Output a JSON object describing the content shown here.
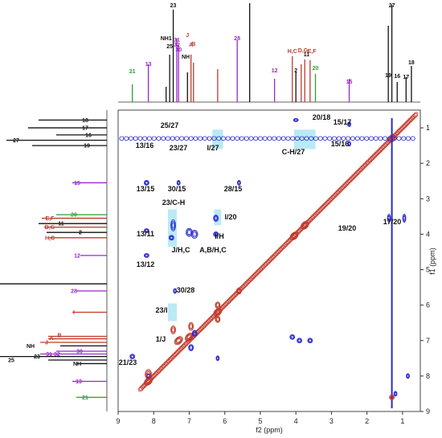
{
  "chart_data": {
    "type": "heatmap",
    "title": "",
    "xlabel": "f2 (ppm)",
    "ylabel": "f1 (ppm)",
    "xlim": [
      9,
      0.5
    ],
    "ylim": [
      0.5,
      9
    ],
    "x_ticks": [
      "9",
      "8",
      "7",
      "6",
      "5",
      "4",
      "3",
      "2",
      "1"
    ],
    "y_ticks": [
      "1",
      "2",
      "3",
      "4",
      "5",
      "6",
      "7",
      "8",
      "9"
    ],
    "grid": false,
    "series": [
      {
        "name": "",
        "color": "#c0392b"
      },
      {
        "name": "",
        "color": "#2a2ad4"
      }
    ],
    "highlight_color": "#7fd9ec",
    "cross_peaks": [
      {
        "label": "20/18",
        "x": 4.0,
        "y": 0.78
      },
      {
        "label": "15/17",
        "x": 2.5,
        "y": 0.9
      },
      {
        "label": "25/27",
        "x": 7.5,
        "y": 1.3
      },
      {
        "label": "13/16",
        "x": 8.2,
        "y": 1.3
      },
      {
        "label": "23/27",
        "x": 7.4,
        "y": 1.3
      },
      {
        "label": "I/27",
        "x": 6.2,
        "y": 1.3
      },
      {
        "label": "C-H/27",
        "x": 3.8,
        "y": 1.3
      },
      {
        "label": "15/16",
        "x": 2.5,
        "y": 1.3
      },
      {
        "label": "13/15",
        "x": 8.2,
        "y": 2.55
      },
      {
        "label": "30/15",
        "x": 7.3,
        "y": 2.55
      },
      {
        "label": "28/15",
        "x": 5.6,
        "y": 2.55
      },
      {
        "label": "23/C-H",
        "x": 7.4,
        "y": 3.65
      },
      {
        "label": "I/20",
        "x": 6.2,
        "y": 3.55
      },
      {
        "label": "13/11",
        "x": 8.2,
        "y": 3.9
      },
      {
        "label": "I/H",
        "x": 6.2,
        "y": 4.0
      },
      {
        "label": "J/H,C",
        "x": 7.3,
        "y": 4.0
      },
      {
        "label": "A,B/H,C",
        "x": 6.9,
        "y": 4.0
      },
      {
        "label": "19/20",
        "x": 1.3,
        "y": 3.55
      },
      {
        "label": "17/20",
        "x": 0.9,
        "y": 3.55
      },
      {
        "label": "13/12",
        "x": 8.2,
        "y": 4.6
      },
      {
        "label": "30/28",
        "x": 7.3,
        "y": 5.6
      },
      {
        "label": "23/I",
        "x": 7.5,
        "y": 6.2
      },
      {
        "label": "1/J",
        "x": 7.3,
        "y": 7.0
      },
      {
        "label": "21/23",
        "x": 8.6,
        "y": 7.5
      }
    ],
    "top_projection_labels": [
      {
        "label": "23",
        "x": 7.45,
        "color": "#111111"
      },
      {
        "label": "27",
        "x": 1.3,
        "color": "#111111"
      },
      {
        "label": "31",
        "x": 7.35,
        "color": "#9b27c9"
      },
      {
        "label": "32",
        "x": 7.35,
        "color": "#9b27c9"
      },
      {
        "label": "30",
        "x": 7.3,
        "color": "#9b27c9"
      },
      {
        "label": "J",
        "x": 7.05,
        "color": "#c0392b"
      },
      {
        "label": "A",
        "x": 6.95,
        "color": "#c0392b"
      },
      {
        "label": "B",
        "x": 6.88,
        "color": "#c0392b"
      },
      {
        "label": "25",
        "x": 7.55,
        "color": "#111111"
      },
      {
        "label": "28",
        "x": 5.65,
        "color": "#9b27c9"
      },
      {
        "label": "13",
        "x": 8.15,
        "color": "#9b27c9"
      },
      {
        "label": "NH1",
        "x": 7.65,
        "color": "#111111"
      },
      {
        "label": "NH",
        "x": 7.1,
        "color": "#111111"
      },
      {
        "label": "I",
        "x": 6.2,
        "color": "#c0392b"
      },
      {
        "label": "H,C",
        "x": 4.1,
        "color": "#c0392b"
      },
      {
        "label": "D,G",
        "x": 3.8,
        "color": "#c0392b"
      },
      {
        "label": "E,F",
        "x": 3.55,
        "color": "#c0392b"
      },
      {
        "label": "11",
        "x": 3.7,
        "color": "#111111"
      },
      {
        "label": "2",
        "x": 4.0,
        "color": "#111111"
      },
      {
        "label": "20",
        "x": 3.45,
        "color": "#2e9e2e"
      },
      {
        "label": "12",
        "x": 4.6,
        "color": "#9b27c9"
      },
      {
        "label": "21",
        "x": 8.6,
        "color": "#2e9e2e"
      },
      {
        "label": "15",
        "x": 2.5,
        "color": "#9b27c9"
      },
      {
        "label": "19",
        "x": 1.4,
        "color": "#111111"
      },
      {
        "label": "16",
        "x": 1.15,
        "color": "#111111"
      },
      {
        "label": "17",
        "x": 0.9,
        "color": "#111111"
      },
      {
        "label": "18",
        "x": 0.75,
        "color": "#111111"
      }
    ],
    "left_projection_labels": [
      {
        "label": "18",
        "y": 0.78,
        "color": "#111111"
      },
      {
        "label": "17",
        "y": 1.0,
        "color": "#111111"
      },
      {
        "label": "16",
        "y": 1.2,
        "color": "#111111"
      },
      {
        "label": "27",
        "y": 1.35,
        "color": "#111111"
      },
      {
        "label": "19",
        "y": 1.5,
        "color": "#111111"
      },
      {
        "label": "15",
        "y": 2.55,
        "color": "#9b27c9"
      },
      {
        "label": "20",
        "y": 3.45,
        "color": "#2e9e2e"
      },
      {
        "label": "E,F",
        "y": 3.55,
        "color": "#c0392b"
      },
      {
        "label": "11",
        "y": 3.7,
        "color": "#111111"
      },
      {
        "label": "D,G",
        "y": 3.8,
        "color": "#c0392b"
      },
      {
        "label": "2",
        "y": 3.95,
        "color": "#111111"
      },
      {
        "label": "H,C",
        "y": 4.1,
        "color": "#c0392b"
      },
      {
        "label": "12",
        "y": 4.6,
        "color": "#9b27c9"
      },
      {
        "label": "28",
        "y": 5.6,
        "color": "#9b27c9"
      },
      {
        "label": "I",
        "y": 6.2,
        "color": "#c0392b"
      },
      {
        "label": "B",
        "y": 6.85,
        "color": "#c0392b"
      },
      {
        "label": "A",
        "y": 6.93,
        "color": "#c0392b"
      },
      {
        "label": "J",
        "y": 7.05,
        "color": "#c0392b"
      },
      {
        "label": "NH",
        "y": 7.15,
        "color": "#111111"
      },
      {
        "label": "30",
        "y": 7.3,
        "color": "#9b27c9"
      },
      {
        "label": "31 32",
        "y": 7.38,
        "color": "#9b27c9"
      },
      {
        "label": "23",
        "y": 7.45,
        "color": "#111111"
      },
      {
        "label": "25",
        "y": 7.55,
        "color": "#111111"
      },
      {
        "label": "NH",
        "y": 7.65,
        "color": "#111111"
      },
      {
        "label": "13",
        "y": 8.15,
        "color": "#9b27c9"
      },
      {
        "label": "21",
        "y": 8.6,
        "color": "#2e9e2e"
      }
    ]
  }
}
